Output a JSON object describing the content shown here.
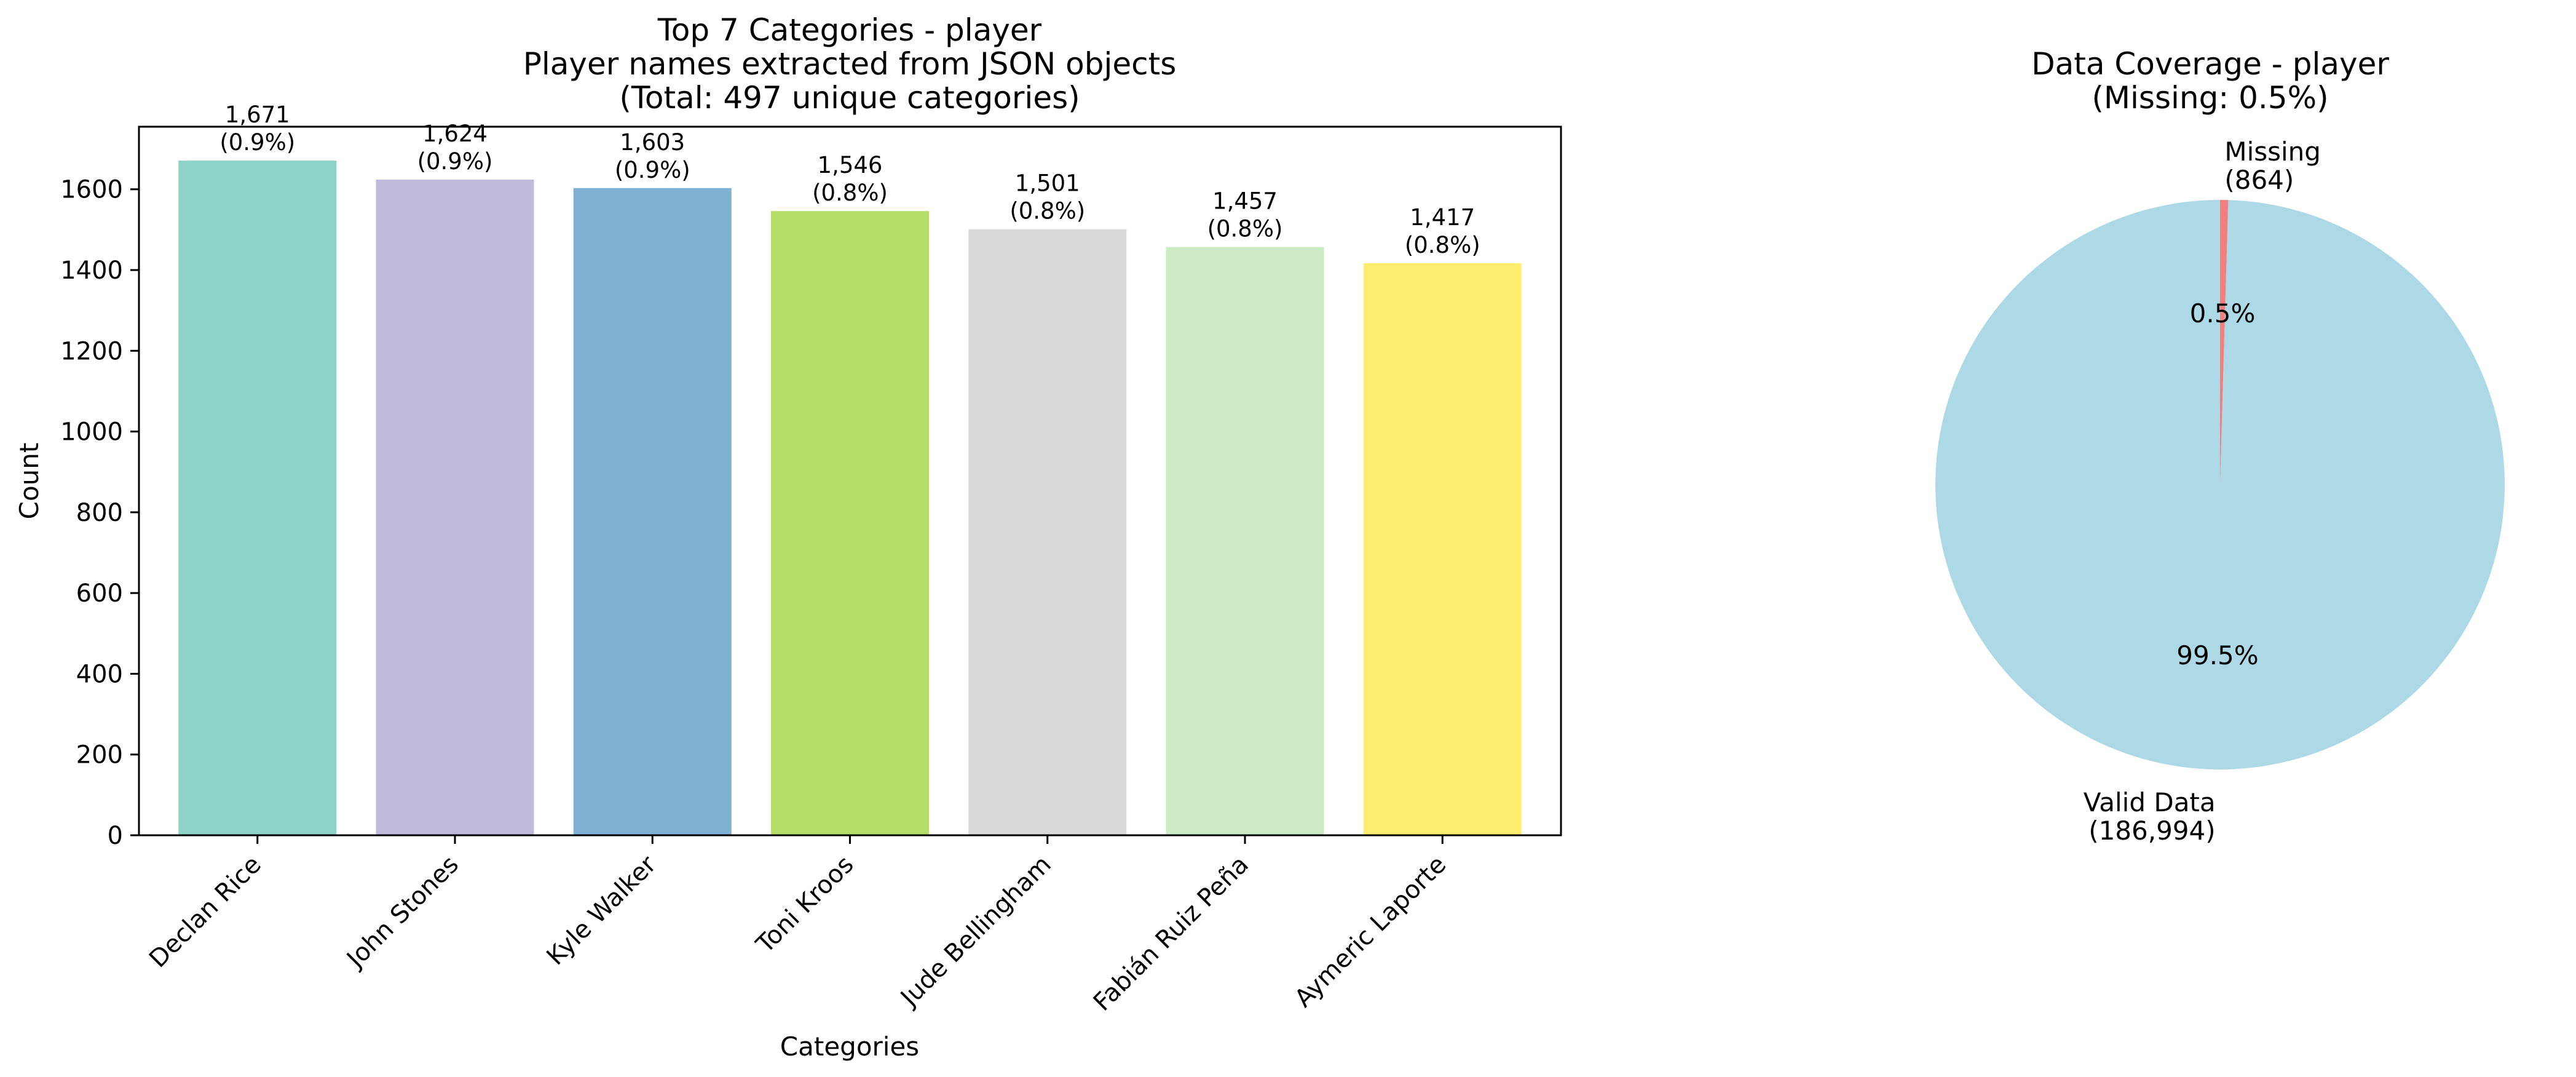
{
  "chart_data": [
    {
      "type": "bar",
      "title_lines": [
        "Top 7 Categories - player",
        "Player names extracted from JSON objects",
        "(Total: 497 unique categories)"
      ],
      "xlabel": "Categories",
      "ylabel": "Count",
      "categories": [
        "Declan Rice",
        "John Stones",
        "Kyle Walker",
        "Toni Kroos",
        "Jude Bellingham",
        "Fabián Ruiz Peña",
        "Aymeric Laporte"
      ],
      "values": [
        1671,
        1624,
        1603,
        1546,
        1501,
        1457,
        1417
      ],
      "value_labels": [
        "1,671",
        "1,624",
        "1,603",
        "1,546",
        "1,501",
        "1,457",
        "1,417"
      ],
      "percent_labels": [
        "(0.9%)",
        "(0.9%)",
        "(0.9%)",
        "(0.8%)",
        "(0.8%)",
        "(0.8%)",
        "(0.8%)"
      ],
      "colors": [
        "#8dd3c7",
        "#bebada",
        "#80b1d3",
        "#b3de69",
        "#d9d9d9",
        "#ccebc5",
        "#ffed6f"
      ],
      "ylim": [
        0,
        1755
      ],
      "yticks": [
        0,
        200,
        400,
        600,
        800,
        1000,
        1200,
        1400,
        1600
      ],
      "grid": false
    },
    {
      "type": "pie",
      "title_lines": [
        "Data Coverage - player",
        "(Missing: 0.5%)"
      ],
      "slices": [
        {
          "name": "Valid Data",
          "value": 186994,
          "count_label": "(186,994)",
          "pct_label": "99.5%",
          "color": "#add8e6"
        },
        {
          "name": "Missing",
          "value": 864,
          "count_label": "(864)",
          "pct_label": "0.5%",
          "color": "#f08080"
        }
      ]
    }
  ]
}
